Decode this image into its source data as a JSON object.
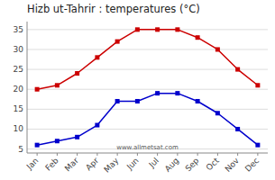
{
  "chart_data": {
    "type": "line",
    "title": "Hizb ut-Tahrir : temperatures (°C)",
    "categories": [
      "Jan",
      "Feb",
      "Mar",
      "Apr",
      "May",
      "Jun",
      "Jul",
      "Aug",
      "Sep",
      "Oct",
      "Nov",
      "Dec"
    ],
    "series": [
      {
        "color": "#cc0000",
        "marker": "square",
        "values": [
          20,
          21,
          24,
          28,
          32,
          35,
          35,
          35,
          33,
          30,
          25,
          21
        ]
      },
      {
        "color": "#0000cc",
        "marker": "square",
        "values": [
          6,
          7,
          8,
          11,
          17,
          17,
          19,
          19,
          17,
          14,
          10,
          6
        ]
      }
    ],
    "ylim": [
      4,
      37
    ],
    "yticks": [
      5,
      10,
      15,
      20,
      25,
      30,
      35
    ],
    "grid": "y",
    "annotations": [
      "www.allmetsat.com"
    ]
  }
}
